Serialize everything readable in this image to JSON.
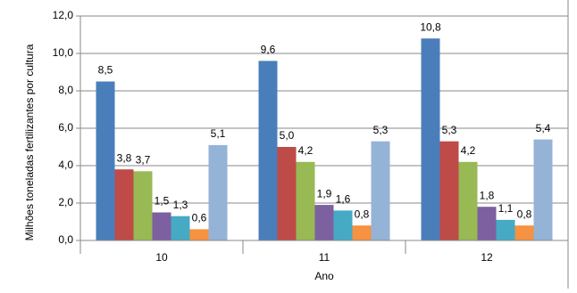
{
  "chart_data": {
    "type": "bar",
    "y_label": "Milhões toneladas fertilizantes por cultura",
    "x_label": "Ano",
    "categories": [
      "10",
      "11",
      "12"
    ],
    "series": [
      {
        "color": "#4a7ebb",
        "values": [
          8.5,
          9.6,
          10.8
        ],
        "value_labels": [
          "8,5",
          "9,6",
          "10,8"
        ]
      },
      {
        "color": "#be4b48",
        "values": [
          3.8,
          5.0,
          5.3
        ],
        "value_labels": [
          "3,8",
          "5,0",
          "5,3"
        ]
      },
      {
        "color": "#98b954",
        "values": [
          3.7,
          4.2,
          4.2
        ],
        "value_labels": [
          "3,7",
          "4,2",
          "4,2"
        ]
      },
      {
        "color": "#7d60a0",
        "values": [
          1.5,
          1.9,
          1.8
        ],
        "value_labels": [
          "1,5",
          "1,9",
          "1,8"
        ]
      },
      {
        "color": "#46aac5",
        "values": [
          1.3,
          1.6,
          1.1
        ],
        "value_labels": [
          "1,3",
          "1,6",
          "1,1"
        ]
      },
      {
        "color": "#f69240",
        "values": [
          0.6,
          0.8,
          0.8
        ],
        "value_labels": [
          "0,6",
          "0,8",
          "0,8"
        ]
      },
      {
        "color": "#95b3d7",
        "values": [
          5.1,
          5.3,
          5.4
        ],
        "value_labels": [
          "5,1",
          "5,3",
          "5,4"
        ]
      }
    ],
    "ylim": [
      0,
      12
    ],
    "yticks": [
      {
        "value": 0,
        "label": "0,0"
      },
      {
        "value": 2,
        "label": "2,0"
      },
      {
        "value": 4,
        "label": "4,0"
      },
      {
        "value": 6,
        "label": "6,0"
      },
      {
        "value": 8,
        "label": "8,0"
      },
      {
        "value": 10,
        "label": "10,0"
      },
      {
        "value": 12,
        "label": "12,0"
      }
    ],
    "grid": true
  }
}
